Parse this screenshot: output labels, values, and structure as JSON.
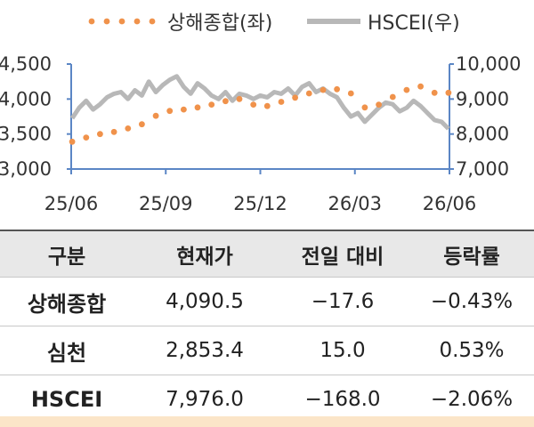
{
  "colors": {
    "shanghai": "#f0924b",
    "hscei": "#b8b8b8",
    "axis": "#5b86c5"
  },
  "chart_data": {
    "type": "line",
    "legend_placement": "top",
    "x_ticks": [
      "25/06",
      "25/09",
      "25/12",
      "26/03",
      "26/06"
    ],
    "y_left_ticks": [
      "3,000",
      "3,500",
      "4,000",
      "4,500"
    ],
    "y_right_ticks": [
      "7,000",
      "8,000",
      "9,000",
      "10,000"
    ],
    "y_left_range": [
      3000,
      4500
    ],
    "y_right_range": [
      7000,
      10000
    ],
    "grid": false,
    "series": [
      {
        "name": "상해종합(좌)",
        "axis": "left",
        "style": "dotted",
        "x": [
          "2025-06-02",
          "2025-06-16",
          "2025-06-30",
          "2025-07-14",
          "2025-07-28",
          "2025-08-11",
          "2025-08-25",
          "2025-09-08",
          "2025-09-22",
          "2025-10-06",
          "2025-10-20",
          "2025-11-03",
          "2025-11-17",
          "2025-12-01",
          "2025-12-15",
          "2025-12-29",
          "2026-01-12",
          "2026-01-26",
          "2026-02-09",
          "2026-02-23",
          "2026-03-09",
          "2026-03-23",
          "2026-04-06",
          "2026-04-20",
          "2026-05-04",
          "2026-05-18",
          "2026-06-01",
          "2026-06-15"
        ],
        "values": [
          3390,
          3450,
          3500,
          3530,
          3580,
          3640,
          3760,
          3830,
          3850,
          3880,
          3920,
          3970,
          4000,
          3920,
          3900,
          3960,
          4020,
          4080,
          4130,
          4140,
          4080,
          3880,
          3920,
          4030,
          4130,
          4180,
          4090,
          4090
        ]
      },
      {
        "name": "HSCEI(우)",
        "axis": "right",
        "style": "solid",
        "x": [
          "2025-06-02",
          "2025-06-09",
          "2025-06-16",
          "2025-06-23",
          "2025-06-30",
          "2025-07-07",
          "2025-07-14",
          "2025-07-21",
          "2025-07-28",
          "2025-08-04",
          "2025-08-11",
          "2025-08-18",
          "2025-08-25",
          "2025-09-01",
          "2025-09-08",
          "2025-09-15",
          "2025-09-22",
          "2025-09-29",
          "2025-10-06",
          "2025-10-13",
          "2025-10-20",
          "2025-10-27",
          "2025-11-03",
          "2025-11-10",
          "2025-11-17",
          "2025-11-24",
          "2025-12-01",
          "2025-12-08",
          "2025-12-15",
          "2025-12-22",
          "2025-12-29",
          "2026-01-05",
          "2026-01-12",
          "2026-01-19",
          "2026-01-26",
          "2026-02-02",
          "2026-02-09",
          "2026-02-16",
          "2026-02-23",
          "2026-03-02",
          "2026-03-09",
          "2026-03-16",
          "2026-03-23",
          "2026-03-30",
          "2026-04-06",
          "2026-04-13",
          "2026-04-20",
          "2026-04-27",
          "2026-05-04",
          "2026-05-11",
          "2026-05-18",
          "2026-05-25",
          "2026-06-01",
          "2026-06-08",
          "2026-06-15"
        ],
        "values": [
          8450,
          8750,
          8950,
          8700,
          8850,
          9050,
          9150,
          9200,
          9000,
          9250,
          9100,
          9500,
          9200,
          9400,
          9550,
          9650,
          9350,
          9150,
          9450,
          9300,
          9100,
          9000,
          9200,
          8950,
          9150,
          9100,
          9000,
          9100,
          9050,
          9200,
          9150,
          9300,
          9100,
          9350,
          9450,
          9200,
          9300,
          9150,
          9050,
          8750,
          8500,
          8600,
          8350,
          8550,
          8750,
          8900,
          8850,
          8650,
          8750,
          8950,
          8800,
          8600,
          8400,
          8350,
          8150
        ]
      }
    ]
  },
  "table": {
    "headers": [
      "구분",
      "현재가",
      "전일 대비",
      "등락률"
    ],
    "rows": [
      [
        "상해종합",
        "4,090.5",
        "−17.6",
        "−0.43%"
      ],
      [
        "심천",
        "2,853.4",
        "15.0",
        "0.53%"
      ],
      [
        "HSCEI",
        "7,976.0",
        "−168.0",
        "−2.06%"
      ]
    ]
  }
}
